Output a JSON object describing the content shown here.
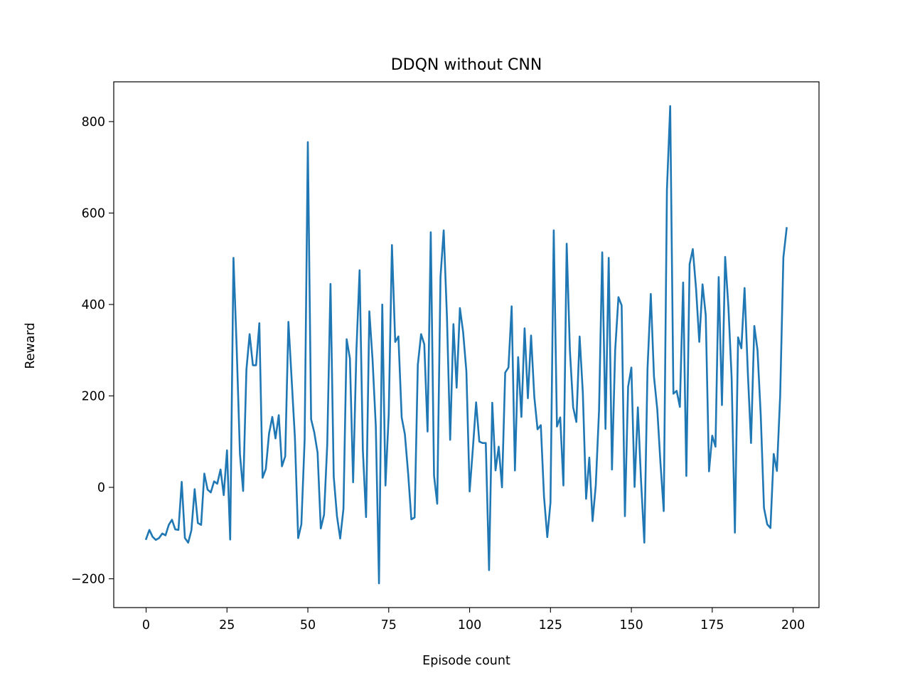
{
  "chart_data": {
    "type": "line",
    "title": "DDQN without CNN",
    "xlabel": "Episode count",
    "ylabel": "Reward",
    "xlim": [
      -10,
      208
    ],
    "ylim": [
      -263,
      887
    ],
    "xticks": [
      0,
      25,
      50,
      75,
      100,
      125,
      150,
      175,
      200
    ],
    "xtick_labels": [
      "0",
      "25",
      "50",
      "75",
      "100",
      "125",
      "150",
      "175",
      "200"
    ],
    "yticks": [
      -200,
      0,
      200,
      400,
      600,
      800
    ],
    "ytick_labels": [
      "−200",
      "0",
      "200",
      "400",
      "600",
      "800"
    ],
    "grid": false,
    "legend": "none",
    "line_color": "#1f77b4",
    "series": [
      {
        "x": [
          0,
          1,
          2,
          3,
          4,
          5,
          6,
          7,
          8,
          9,
          10,
          11,
          12,
          13,
          14,
          15,
          16,
          17,
          18,
          19,
          20,
          21,
          22,
          23,
          24,
          25,
          26,
          27,
          28,
          29,
          30,
          31,
          32,
          33,
          34,
          35,
          36,
          37,
          38,
          39,
          40,
          41,
          42,
          43,
          44,
          45,
          46,
          47,
          48,
          49,
          50,
          51,
          52,
          53,
          54,
          55,
          56,
          57,
          58,
          59,
          60,
          61,
          62,
          63,
          64,
          65,
          66,
          67,
          68,
          69,
          70,
          71,
          72,
          73,
          74,
          75,
          76,
          77,
          78,
          79,
          80,
          81,
          82,
          83,
          84,
          85,
          86,
          87,
          88,
          89,
          90,
          91,
          92,
          93,
          94,
          95,
          96,
          97,
          98,
          99,
          100,
          101,
          102,
          103,
          104,
          105,
          106,
          107,
          108,
          109,
          110,
          111,
          112,
          113,
          114,
          115,
          116,
          117,
          118,
          119,
          120,
          121,
          122,
          123,
          124,
          125,
          126,
          127,
          128,
          129,
          130,
          131,
          132,
          133,
          134,
          135,
          136,
          137,
          138,
          139,
          140,
          141,
          142,
          143,
          144,
          145,
          146,
          147,
          148,
          149,
          150,
          151,
          152,
          153,
          154,
          155,
          156,
          157,
          158,
          159,
          160,
          161,
          162,
          163,
          164,
          165,
          166,
          167,
          168,
          169,
          170,
          171,
          172,
          173,
          174,
          175,
          176,
          177,
          178,
          179,
          180,
          181,
          182,
          183,
          184,
          185,
          186,
          187,
          188,
          189,
          190,
          191,
          192,
          193,
          194,
          195,
          196,
          197,
          198
        ],
        "values": [
          -113,
          -93,
          -108,
          -115,
          -111,
          -101,
          -105,
          -82,
          -71,
          -92,
          -93,
          12,
          -111,
          -121,
          -94,
          -4,
          -78,
          -82,
          30,
          -5,
          -11,
          13,
          8,
          39,
          -17,
          81,
          -114,
          502,
          306,
          73,
          -8,
          257,
          335,
          267,
          267,
          359,
          21,
          40,
          117,
          154,
          107,
          158,
          46,
          68,
          362,
          234,
          109,
          -111,
          -81,
          104,
          755,
          149,
          120,
          76,
          -90,
          -60,
          94,
          445,
          24,
          -63,
          -112,
          -47,
          324,
          282,
          11,
          298,
          475,
          81,
          -65,
          385,
          280,
          134,
          -210,
          400,
          4,
          160,
          530,
          318,
          330,
          153,
          116,
          30,
          -70,
          -66,
          268,
          335,
          313,
          122,
          558,
          26,
          -36,
          460,
          562,
          372,
          104,
          357,
          218,
          392,
          340,
          254,
          -9,
          84,
          186,
          100,
          97,
          97,
          -181,
          185,
          37,
          89,
          0,
          251,
          262,
          396,
          37,
          285,
          154,
          348,
          195,
          332,
          197,
          127,
          136,
          -20,
          -109,
          -33,
          562,
          133,
          153,
          4,
          533,
          300,
          175,
          143,
          330,
          207,
          -25,
          65,
          -74,
          4,
          168,
          514,
          128,
          502,
          39,
          300,
          416,
          398,
          -63,
          220,
          262,
          1,
          175,
          14,
          -121,
          260,
          423,
          242,
          171,
          53,
          -52,
          651,
          834,
          205,
          211,
          176,
          448,
          25,
          488,
          521,
          434,
          318,
          444,
          376,
          35,
          113,
          89,
          460,
          180,
          504,
          394,
          240,
          -99,
          328,
          304,
          436,
          251,
          97,
          353,
          300,
          156,
          -45,
          -81,
          -89,
          73,
          36,
          201,
          503,
          567
        ]
      }
    ]
  }
}
